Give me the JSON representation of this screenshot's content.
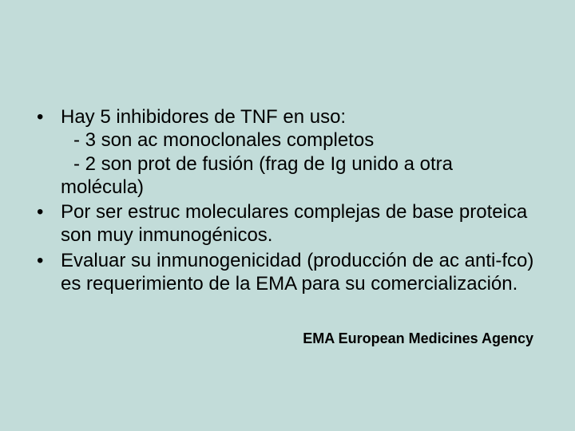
{
  "background_color": "#c2dcd9",
  "text_color": "#000000",
  "body_fontsize": 24,
  "footer_fontsize": 18,
  "bullets": [
    {
      "text": "Hay 5 inhibidores de TNF en uso:",
      "sub": [
        "- 3 son ac monoclonales completos",
        "- 2 son prot de fusión (frag de Ig unido a otra"
      ],
      "sub_wrap": "molécula)"
    },
    {
      "text": "Por ser estruc moleculares complejas de base proteica son muy inmunogénicos."
    },
    {
      "text": "Evaluar su inmunogenicidad (producción de ac anti-fco) es requerimiento de la EMA para su comercialización."
    }
  ],
  "footer": "EMA European Medicines Agency"
}
